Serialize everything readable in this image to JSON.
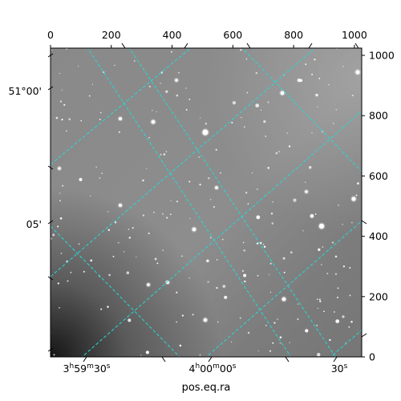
{
  "chart_data": {
    "type": "image",
    "xlabel": "pos.eq.ra",
    "image_colormap": "grayscale",
    "grid_color": "#27d8d8",
    "top_axis": {
      "ticks": [
        0,
        200,
        400,
        600,
        800,
        1000
      ],
      "labels": [
        "0",
        "200",
        "400",
        "600",
        "800",
        "1000"
      ],
      "range": [
        0,
        1024
      ]
    },
    "right_axis": {
      "ticks": [
        0,
        200,
        400,
        600,
        800,
        1000
      ],
      "labels": [
        "0",
        "200",
        "400",
        "600",
        "800",
        "1000"
      ],
      "range": [
        0,
        1024
      ]
    },
    "bottom_axis": {
      "ticks": [
        {
          "label_h": "3",
          "label_m": "59",
          "label_s": "30"
        },
        {
          "label_h": "4",
          "label_m": "00",
          "label_s": "00"
        },
        {
          "label_s": "30"
        }
      ]
    },
    "left_axis": {
      "ticks": [
        {
          "label": "51°00'"
        },
        {
          "label": "05'"
        }
      ]
    }
  }
}
